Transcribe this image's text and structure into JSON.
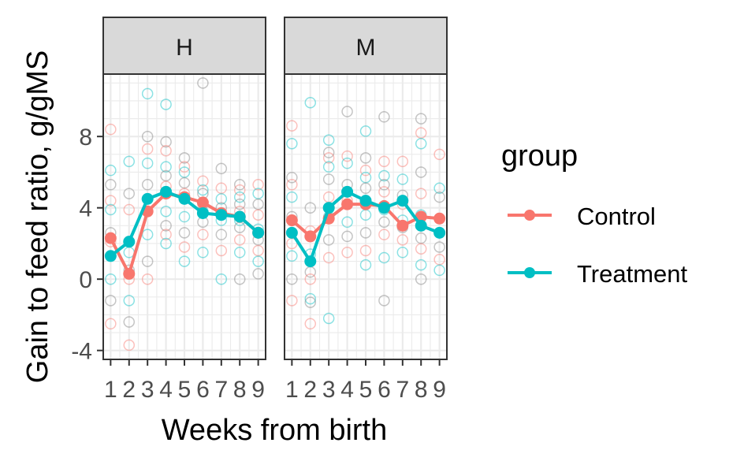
{
  "chart_data": {
    "type": "line",
    "title": "",
    "xlabel": "Weeks from birth",
    "ylabel": "Gain to feed ratio, g/gMS",
    "x": [
      1,
      2,
      3,
      4,
      5,
      6,
      7,
      8,
      9
    ],
    "x_tick_labels": [
      "1",
      "2",
      "3",
      "4",
      "5",
      "6",
      "7",
      "8",
      "9"
    ],
    "y_ticks": [
      -4,
      0,
      4,
      8
    ],
    "y_tick_labels": [
      "-4",
      "0",
      "4",
      "8"
    ],
    "ylim": [
      -4.5,
      11.5
    ],
    "xlim": [
      0.6,
      9.4
    ],
    "grid": true,
    "legend": {
      "title": "group",
      "placement": "right",
      "entries": [
        "Control",
        "Treatment"
      ]
    },
    "colors": {
      "Control": "#F8766D",
      "Treatment": "#00BFC4",
      "raw_grey": "#7f7f7f"
    },
    "facets": [
      {
        "label": "H",
        "series": [
          {
            "name": "Control",
            "values": [
              2.3,
              0.3,
              3.8,
              4.8,
              4.6,
              4.3,
              3.7,
              3.5,
              2.6
            ]
          },
          {
            "name": "Treatment",
            "values": [
              1.3,
              2.1,
              4.5,
              4.9,
              4.5,
              3.7,
              3.6,
              3.5,
              2.6
            ]
          }
        ],
        "raw_points": [
          [
            1,
            8.4
          ],
          [
            1,
            6.1
          ],
          [
            1,
            5.3
          ],
          [
            1,
            4.4
          ],
          [
            1,
            3.9
          ],
          [
            1,
            2.6
          ],
          [
            1,
            2.1
          ],
          [
            1,
            0.0
          ],
          [
            1,
            -1.2
          ],
          [
            1,
            -2.5
          ],
          [
            2,
            6.6
          ],
          [
            2,
            4.8
          ],
          [
            2,
            3.9
          ],
          [
            2,
            1.5
          ],
          [
            2,
            0.5
          ],
          [
            2,
            0.0
          ],
          [
            2,
            -1.2
          ],
          [
            2,
            -2.4
          ],
          [
            2,
            -3.7
          ],
          [
            3,
            10.4
          ],
          [
            3,
            8.0
          ],
          [
            3,
            7.3
          ],
          [
            3,
            6.5
          ],
          [
            3,
            5.3
          ],
          [
            3,
            4.5
          ],
          [
            3,
            2.5
          ],
          [
            3,
            1.0
          ],
          [
            3,
            0.0
          ],
          [
            4,
            9.8
          ],
          [
            4,
            7.7
          ],
          [
            4,
            7.2
          ],
          [
            4,
            6.3
          ],
          [
            4,
            5.8
          ],
          [
            4,
            5.2
          ],
          [
            4,
            3.8
          ],
          [
            4,
            3.0
          ],
          [
            4,
            2.5
          ],
          [
            4,
            2.0
          ],
          [
            5,
            6.8
          ],
          [
            5,
            6.3
          ],
          [
            5,
            6.0
          ],
          [
            5,
            5.4
          ],
          [
            5,
            4.8
          ],
          [
            5,
            3.5
          ],
          [
            5,
            2.6
          ],
          [
            5,
            1.8
          ],
          [
            5,
            1.0
          ],
          [
            6,
            11.0
          ],
          [
            6,
            5.5
          ],
          [
            6,
            5.0
          ],
          [
            6,
            4.8
          ],
          [
            6,
            4.2
          ],
          [
            6,
            3.8
          ],
          [
            6,
            3.2
          ],
          [
            6,
            2.5
          ],
          [
            6,
            1.5
          ],
          [
            7,
            6.2
          ],
          [
            7,
            5.1
          ],
          [
            7,
            4.5
          ],
          [
            7,
            4.0
          ],
          [
            7,
            3.6
          ],
          [
            7,
            3.3
          ],
          [
            7,
            2.5
          ],
          [
            7,
            1.6
          ],
          [
            7,
            0.0
          ],
          [
            8,
            5.3
          ],
          [
            8,
            5.0
          ],
          [
            8,
            4.6
          ],
          [
            8,
            4.2
          ],
          [
            8,
            3.8
          ],
          [
            8,
            3.3
          ],
          [
            8,
            2.9
          ],
          [
            8,
            2.2
          ],
          [
            8,
            1.5
          ],
          [
            8,
            0.0
          ],
          [
            9,
            5.3
          ],
          [
            9,
            4.8
          ],
          [
            9,
            4.2
          ],
          [
            9,
            3.6
          ],
          [
            9,
            2.8
          ],
          [
            9,
            2.2
          ],
          [
            9,
            1.6
          ],
          [
            9,
            1.0
          ],
          [
            9,
            0.3
          ]
        ]
      },
      {
        "label": "M",
        "series": [
          {
            "name": "Control",
            "values": [
              3.3,
              2.4,
              3.4,
              4.2,
              4.2,
              4.1,
              3.0,
              3.5,
              3.4
            ]
          },
          {
            "name": "Treatment",
            "values": [
              2.6,
              1.0,
              4.0,
              4.9,
              4.4,
              4.0,
              4.4,
              3.0,
              2.6
            ]
          }
        ],
        "raw_points": [
          [
            1,
            8.6
          ],
          [
            1,
            7.6
          ],
          [
            1,
            5.7
          ],
          [
            1,
            5.3
          ],
          [
            1,
            4.6
          ],
          [
            1,
            3.5
          ],
          [
            1,
            2.0
          ],
          [
            1,
            1.3
          ],
          [
            1,
            0.0
          ],
          [
            1,
            -1.2
          ],
          [
            2,
            9.9
          ],
          [
            2,
            4.0
          ],
          [
            2,
            2.7
          ],
          [
            2,
            1.4
          ],
          [
            2,
            0.4
          ],
          [
            2,
            0.0
          ],
          [
            2,
            -1.1
          ],
          [
            2,
            -1.3
          ],
          [
            2,
            -2.5
          ],
          [
            3,
            7.8
          ],
          [
            3,
            7.1
          ],
          [
            3,
            6.8
          ],
          [
            3,
            6.3
          ],
          [
            3,
            5.6
          ],
          [
            3,
            4.6
          ],
          [
            3,
            3.5
          ],
          [
            3,
            2.2
          ],
          [
            3,
            1.2
          ],
          [
            3,
            -2.2
          ],
          [
            4,
            9.4
          ],
          [
            4,
            6.9
          ],
          [
            4,
            6.5
          ],
          [
            4,
            5.3
          ],
          [
            4,
            4.4
          ],
          [
            4,
            3.2
          ],
          [
            4,
            2.4
          ],
          [
            4,
            1.5
          ],
          [
            5,
            8.3
          ],
          [
            5,
            6.8
          ],
          [
            5,
            6.1
          ],
          [
            5,
            5.7
          ],
          [
            5,
            5.1
          ],
          [
            5,
            4.3
          ],
          [
            5,
            3.6
          ],
          [
            5,
            2.6
          ],
          [
            5,
            1.6
          ],
          [
            5,
            0.8
          ],
          [
            6,
            9.1
          ],
          [
            6,
            6.6
          ],
          [
            6,
            5.8
          ],
          [
            6,
            5.3
          ],
          [
            6,
            4.9
          ],
          [
            6,
            3.9
          ],
          [
            6,
            3.2
          ],
          [
            6,
            2.5
          ],
          [
            6,
            1.2
          ],
          [
            6,
            -1.2
          ],
          [
            7,
            6.6
          ],
          [
            7,
            5.6
          ],
          [
            7,
            4.7
          ],
          [
            7,
            4.2
          ],
          [
            7,
            3.3
          ],
          [
            7,
            2.9
          ],
          [
            7,
            2.2
          ],
          [
            7,
            1.5
          ],
          [
            8,
            9.0
          ],
          [
            8,
            8.2
          ],
          [
            8,
            7.6
          ],
          [
            8,
            6.0
          ],
          [
            8,
            4.8
          ],
          [
            8,
            3.6
          ],
          [
            8,
            2.3
          ],
          [
            8,
            1.7
          ],
          [
            8,
            0.8
          ],
          [
            8,
            0.0
          ],
          [
            9,
            7.0
          ],
          [
            9,
            5.1
          ],
          [
            9,
            4.6
          ],
          [
            9,
            3.4
          ],
          [
            9,
            2.6
          ],
          [
            9,
            1.8
          ],
          [
            9,
            1.1
          ],
          [
            9,
            0.5
          ]
        ]
      }
    ]
  }
}
